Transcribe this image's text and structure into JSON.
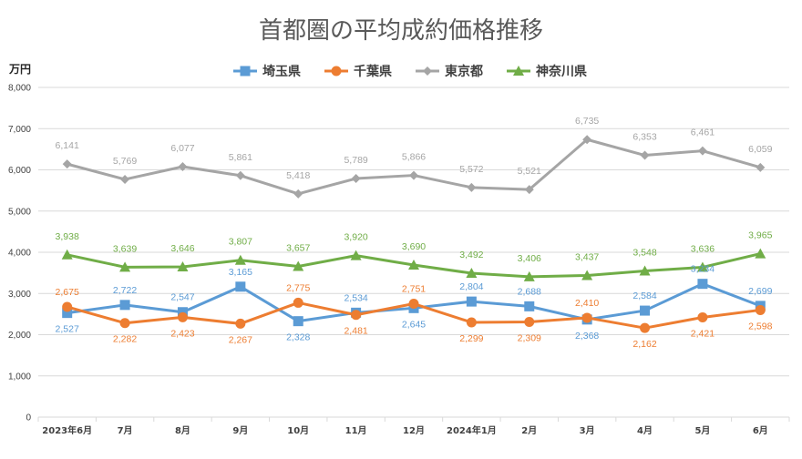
{
  "chart_data": {
    "type": "line",
    "title": "首都圏の平均成約価格推移",
    "ylabel": "万円",
    "xlabel": "",
    "ylim": [
      0,
      8000
    ],
    "ytick_values": [
      0,
      1000,
      2000,
      3000,
      4000,
      5000,
      6000,
      7000,
      8000
    ],
    "ytick_labels": [
      "0",
      "1,000",
      "2,000",
      "3,000",
      "4,000",
      "5,000",
      "6,000",
      "7,000",
      "8,000"
    ],
    "categories": [
      "2023年6月",
      "7月",
      "8月",
      "9月",
      "10月",
      "11月",
      "12月",
      "2024年1月",
      "2月",
      "3月",
      "4月",
      "5月",
      "6月"
    ],
    "grid": true,
    "legend_position": "top",
    "series": [
      {
        "name": "埼玉県",
        "color": "#5b9bd5",
        "marker": "square",
        "values": [
          2527,
          2722,
          2547,
          3165,
          2328,
          2534,
          2645,
          2804,
          2688,
          2368,
          2584,
          3234,
          2699
        ],
        "labels": [
          "2,527",
          "2,722",
          "2,547",
          "3,165",
          "2,328",
          "2,534",
          "2,645",
          "2,804",
          "2,688",
          "2,368",
          "2,584",
          "3,234",
          "2,699"
        ]
      },
      {
        "name": "千葉県",
        "color": "#ed7d31",
        "marker": "circle",
        "values": [
          2675,
          2282,
          2423,
          2267,
          2775,
          2481,
          2751,
          2299,
          2309,
          2410,
          2162,
          2421,
          2598
        ],
        "labels": [
          "2,675",
          "2,282",
          "2,423",
          "2,267",
          "2,775",
          "2,481",
          "2,751",
          "2,299",
          "2,309",
          "2,410",
          "2,162",
          "2,421",
          "2,598"
        ]
      },
      {
        "name": "東京都",
        "color": "#a5a5a5",
        "marker": "diamond",
        "values": [
          6141,
          5769,
          6077,
          5861,
          5418,
          5789,
          5866,
          5572,
          5521,
          6735,
          6353,
          6461,
          6059
        ],
        "labels": [
          "6,141",
          "5,769",
          "6,077",
          "5,861",
          "5,418",
          "5,789",
          "5,866",
          "5,572",
          "5,521",
          "6,735",
          "6,353",
          "6,461",
          "6,059"
        ]
      },
      {
        "name": "神奈川県",
        "color": "#70ad47",
        "marker": "triangle",
        "values": [
          3938,
          3639,
          3646,
          3807,
          3657,
          3920,
          3690,
          3492,
          3406,
          3437,
          3548,
          3636,
          3965
        ],
        "labels": [
          "3,938",
          "3,639",
          "3,646",
          "3,807",
          "3,657",
          "3,920",
          "3,690",
          "3,492",
          "3,406",
          "3,437",
          "3,548",
          "3,636",
          "3,965"
        ]
      }
    ]
  }
}
